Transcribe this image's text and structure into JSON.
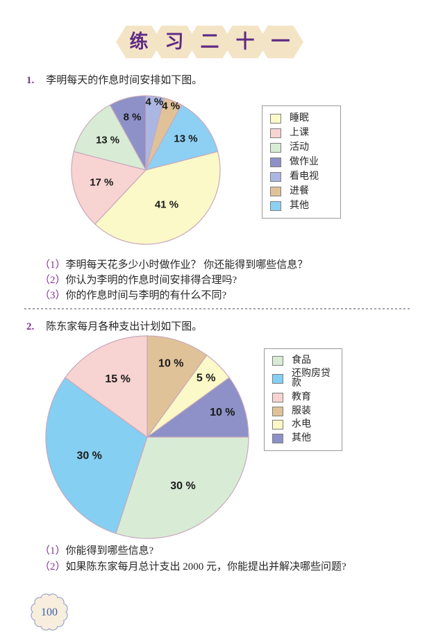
{
  "title": {
    "chars": [
      "练",
      "习",
      "二",
      "十",
      "一"
    ]
  },
  "q1": {
    "number": "1.",
    "prompt": "李明每天的作息时间安排如下图。",
    "subs": [
      {
        "num": "（1）",
        "text": "李明每天花多少小时做作业？ 你还能得到哪些信息？"
      },
      {
        "num": "（2）",
        "text": "你认为李明的作息时间安排得合理吗?"
      },
      {
        "num": "（3）",
        "text": "你的作息时间与李明的有什么不同?"
      }
    ]
  },
  "q2": {
    "number": "2.",
    "prompt": "陈东家每月各种支出计划如下图。",
    "subs": [
      {
        "num": "（1）",
        "text": "你能得到哪些信息?"
      },
      {
        "num": "（2）",
        "text": "如果陈东家每月总计支出 2000 元，你能提出并解决哪些问题?"
      }
    ]
  },
  "page_number": "100",
  "chart_data": [
    {
      "type": "pie",
      "title": "李明每天的作息时间安排",
      "unit": "%",
      "start_angle_deg": 0,
      "direction": "clockwise",
      "label_format": "{value} %",
      "slices": [
        {
          "label": "看电视",
          "value": 4,
          "color": "#abb7e3",
          "label_r": 0.92
        },
        {
          "label": "进餐",
          "value": 4,
          "color": "#e0c298",
          "label_r": 0.92
        },
        {
          "label": "其他",
          "value": 13,
          "color": "#8dd0f3",
          "label_r": 0.68
        },
        {
          "label": "睡眠",
          "value": 41,
          "color": "#fbf9c7",
          "label_r": 0.55
        },
        {
          "label": "上课",
          "value": 17,
          "color": "#f7d3d1",
          "label_r": 0.62
        },
        {
          "label": "活动",
          "value": 13,
          "color": "#d8ecd5",
          "label_r": 0.65
        },
        {
          "label": "做作业",
          "value": 8,
          "color": "#8d91c7",
          "label_r": 0.73
        }
      ],
      "legend": {
        "position": "right",
        "order": [
          "睡眠",
          "上课",
          "活动",
          "做作业",
          "看电视",
          "进餐",
          "其他"
        ]
      }
    },
    {
      "type": "pie",
      "title": "陈东家每月各种支出计划",
      "unit": "%",
      "start_angle_deg": 0,
      "direction": "clockwise",
      "label_format": "{value} %",
      "slices": [
        {
          "label": "服装",
          "value": 10,
          "color": "#e0c298",
          "label_r": 0.76
        },
        {
          "label": "水电",
          "value": 5,
          "color": "#fbf9c7",
          "label_r": 0.82
        },
        {
          "label": "其他",
          "value": 10,
          "color": "#8d91c7",
          "label_r": 0.78
        },
        {
          "label": "食品",
          "value": 30,
          "color": "#d8ecd5",
          "label_r": 0.6
        },
        {
          "label": "还购房贷款",
          "value": 30,
          "color": "#85cff3",
          "label_r": 0.6
        },
        {
          "label": "教育",
          "value": 15,
          "color": "#f7d3d1",
          "label_r": 0.64
        }
      ],
      "legend": {
        "position": "right",
        "order": [
          "食品",
          "还购房贷款",
          "教育",
          "服装",
          "水电",
          "其他"
        ]
      }
    }
  ],
  "colors": {
    "accent_purple": "#5f2b85",
    "number_purple": "#7d3391",
    "text": "#262626",
    "hexagon_fill": "#f4e4c6",
    "pie_stroke": "#c9a8bc",
    "legend_border": "#999999",
    "divider": "#a79fb2",
    "badge_fill": "#f7eedd",
    "badge_border": "#8a95c8",
    "badge_text": "#3a5fa9"
  }
}
